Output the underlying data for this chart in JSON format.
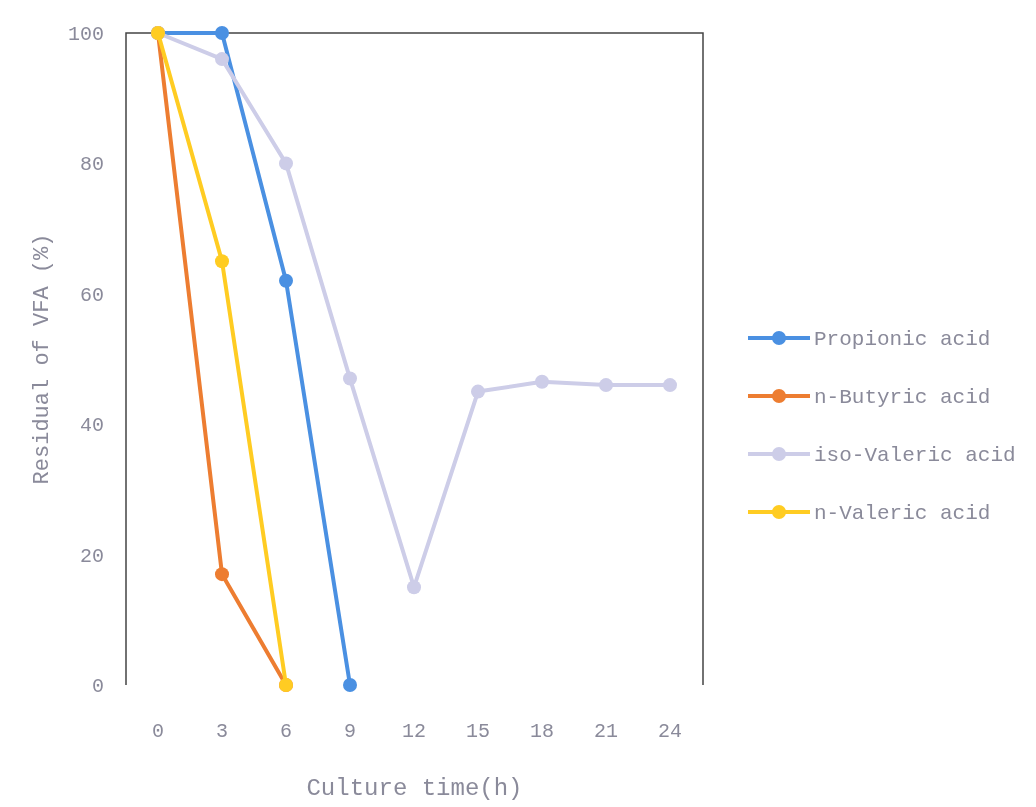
{
  "chart_data": {
    "type": "line",
    "xlabel": "Culture time(h)",
    "ylabel": "Residual of VFA (%)",
    "categories": [
      "0",
      "3",
      "6",
      "9",
      "12",
      "15",
      "18",
      "21",
      "24"
    ],
    "ylim": [
      0,
      100
    ],
    "yticks": [
      0,
      20,
      40,
      60,
      80,
      100
    ],
    "grid": false,
    "legend": "right",
    "marker": "circle",
    "series": [
      {
        "name": "Propionic acid",
        "color": "#4a90e2",
        "values": [
          100,
          100,
          62,
          0,
          null,
          null,
          null,
          null,
          null
        ]
      },
      {
        "name": "n-Butyric acid",
        "color": "#ed7d31",
        "values": [
          100,
          17,
          0,
          null,
          null,
          null,
          null,
          null,
          null
        ]
      },
      {
        "name": "iso-Valeric acid",
        "color": "#cdcde8",
        "values": [
          100,
          96,
          80,
          47,
          15,
          45,
          46.5,
          46,
          46
        ]
      },
      {
        "name": "n-Valeric acid",
        "color": "#ffcc22",
        "values": [
          100,
          65,
          0,
          null,
          null,
          null,
          null,
          null,
          null
        ]
      }
    ]
  }
}
